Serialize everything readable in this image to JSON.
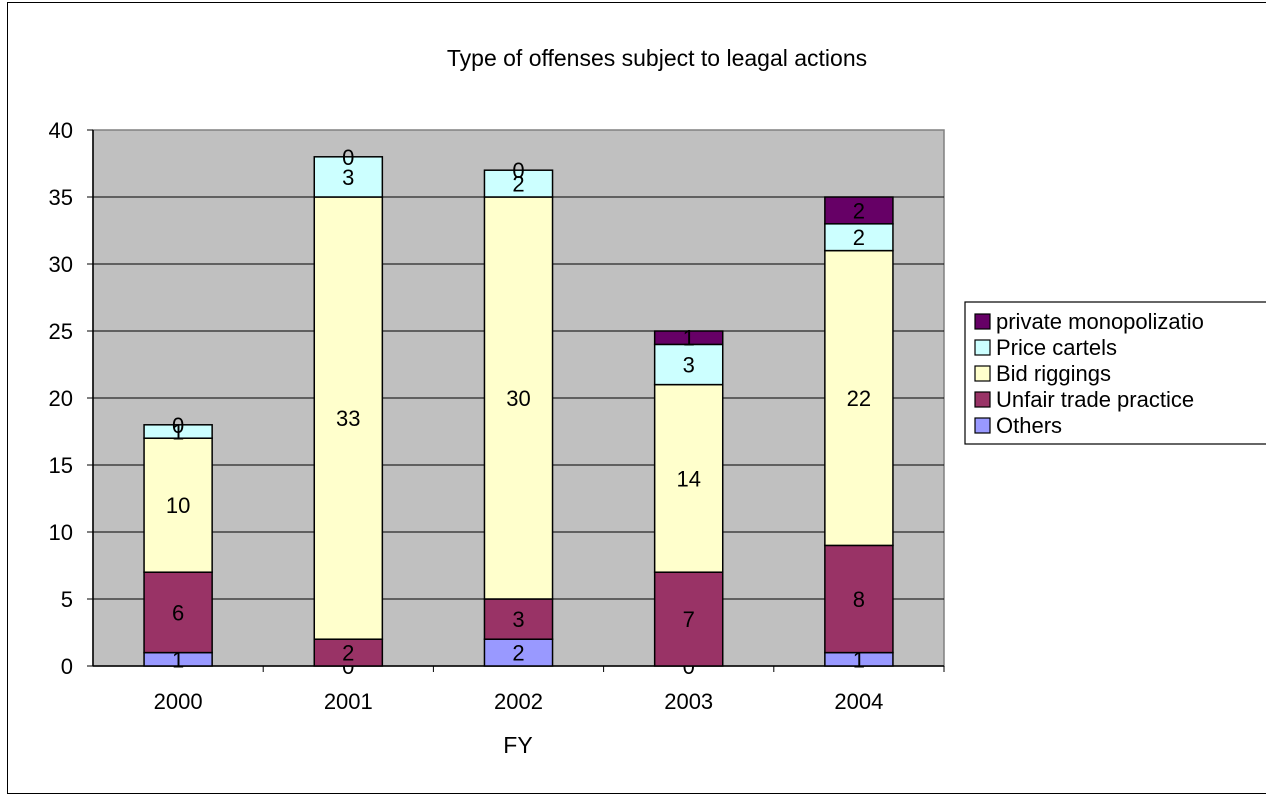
{
  "chart_data": {
    "type": "bar",
    "stacked": true,
    "title": "Type of offenses subject to leagal actions",
    "xlabel": "FY",
    "ylabel": "",
    "ylim": [
      0,
      40
    ],
    "ytick_step": 5,
    "yticks": [
      "0",
      "5",
      "10",
      "15",
      "20",
      "25",
      "30",
      "35",
      "40"
    ],
    "grid": true,
    "plot_background": "#c0c0c0",
    "legend_position": "right",
    "categories": [
      "2000",
      "2001",
      "2002",
      "2003",
      "2004"
    ],
    "series": [
      {
        "name": "Others",
        "color": "#9999ff",
        "values": [
          1,
          0,
          2,
          0,
          1
        ]
      },
      {
        "name": "Unfair trade practice",
        "color": "#993366",
        "values": [
          6,
          2,
          3,
          7,
          8
        ]
      },
      {
        "name": "Bid riggings",
        "color": "#ffffcc",
        "values": [
          10,
          33,
          30,
          14,
          22
        ]
      },
      {
        "name": "Price cartels",
        "color": "#ccffff",
        "values": [
          1,
          3,
          2,
          3,
          2
        ]
      },
      {
        "name": "private monopolizatio",
        "color": "#660066",
        "values": [
          0,
          0,
          0,
          1,
          2
        ]
      }
    ]
  }
}
